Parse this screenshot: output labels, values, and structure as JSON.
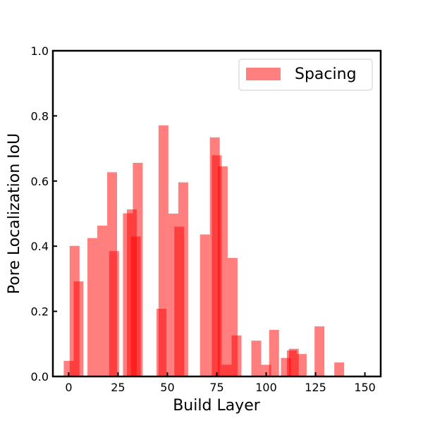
{
  "chart_data": {
    "type": "bar",
    "xlabel": "Build Layer",
    "ylabel": "Pore Localization IoU",
    "xlim": [
      -8,
      158
    ],
    "ylim": [
      0,
      1.0
    ],
    "xticks": [
      0,
      25,
      50,
      75,
      100,
      125,
      150
    ],
    "yticks": [
      0.0,
      0.2,
      0.4,
      0.6,
      0.8,
      1.0
    ],
    "xtick_labels": [
      "0",
      "25",
      "50",
      "75",
      "100",
      "125",
      "150"
    ],
    "ytick_labels": [
      "0.0",
      "0.2",
      "0.4",
      "0.6",
      "0.8",
      "1.0"
    ],
    "legend_position": "top-right",
    "grid": false,
    "series": [
      {
        "name": "Spacing",
        "color": "#ff0000",
        "opacity": 0.5,
        "bar_width": 5,
        "points": [
          {
            "x": 0,
            "y": 0.048
          },
          {
            "x": 3,
            "y": 0.401
          },
          {
            "x": 5,
            "y": 0.292
          },
          {
            "x": 12,
            "y": 0.425
          },
          {
            "x": 17,
            "y": 0.463
          },
          {
            "x": 22,
            "y": 0.627
          },
          {
            "x": 23,
            "y": 0.385
          },
          {
            "x": 30,
            "y": 0.501
          },
          {
            "x": 32,
            "y": 0.513
          },
          {
            "x": 34,
            "y": 0.43
          },
          {
            "x": 35,
            "y": 0.656
          },
          {
            "x": 47,
            "y": 0.208
          },
          {
            "x": 48,
            "y": 0.771
          },
          {
            "x": 53,
            "y": 0.5
          },
          {
            "x": 56,
            "y": 0.46
          },
          {
            "x": 58,
            "y": 0.596
          },
          {
            "x": 69,
            "y": 0.436
          },
          {
            "x": 74,
            "y": 0.734
          },
          {
            "x": 75,
            "y": 0.679
          },
          {
            "x": 78,
            "y": 0.645
          },
          {
            "x": 80,
            "y": 0.036
          },
          {
            "x": 83,
            "y": 0.364
          },
          {
            "x": 85,
            "y": 0.126
          },
          {
            "x": 95,
            "y": 0.11
          },
          {
            "x": 100,
            "y": 0.036
          },
          {
            "x": 104,
            "y": 0.143
          },
          {
            "x": 110,
            "y": 0.057
          },
          {
            "x": 113,
            "y": 0.08
          },
          {
            "x": 114,
            "y": 0.085
          },
          {
            "x": 118,
            "y": 0.069
          },
          {
            "x": 127,
            "y": 0.154
          },
          {
            "x": 137,
            "y": 0.043
          }
        ]
      }
    ]
  }
}
